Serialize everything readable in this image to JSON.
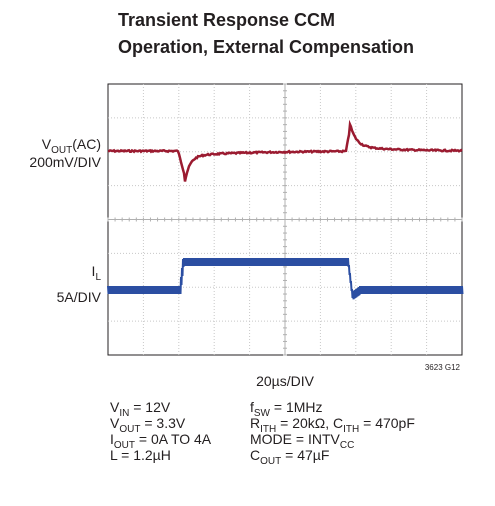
{
  "title": [
    "Transient Response CCM",
    "Operation, External Compensation"
  ],
  "traces": [
    {
      "label": [
        {
          "text": "V"
        },
        {
          "text": "OUT",
          "sub": true
        },
        {
          "text": "(AC)"
        }
      ],
      "scale": "200mV/DIV"
    },
    {
      "label": [
        {
          "text": "I"
        },
        {
          "text": "L",
          "sub": true
        }
      ],
      "scale": "5A/DIV"
    }
  ],
  "time_scale": "20µs/DIV",
  "figure_id": "3623 G12",
  "conditions": {
    "left": [
      [
        {
          "text": "V"
        },
        {
          "text": "IN",
          "sub": true
        },
        {
          "text": " = 12V"
        }
      ],
      [
        {
          "text": "V"
        },
        {
          "text": "OUT",
          "sub": true
        },
        {
          "text": " = 3.3V"
        }
      ],
      [
        {
          "text": "I"
        },
        {
          "text": "OUT",
          "sub": true
        },
        {
          "text": " = 0A TO 4A"
        }
      ],
      [
        {
          "text": "L = 1.2µH"
        }
      ]
    ],
    "right": [
      [
        {
          "text": "f"
        },
        {
          "text": "SW",
          "sub": true
        },
        {
          "text": " = 1MHz"
        }
      ],
      [
        {
          "text": "R"
        },
        {
          "text": "ITH",
          "sub": true
        },
        {
          "text": " = 20kΩ, C"
        },
        {
          "text": "ITH",
          "sub": true
        },
        {
          "text": " = 470pF"
        }
      ],
      [
        {
          "text": "MODE = INTV"
        },
        {
          "text": "CC",
          "sub": true
        }
      ],
      [
        {
          "text": "C"
        },
        {
          "text": "OUT",
          "sub": true
        },
        {
          "text": " = 47µF"
        }
      ]
    ]
  }
}
